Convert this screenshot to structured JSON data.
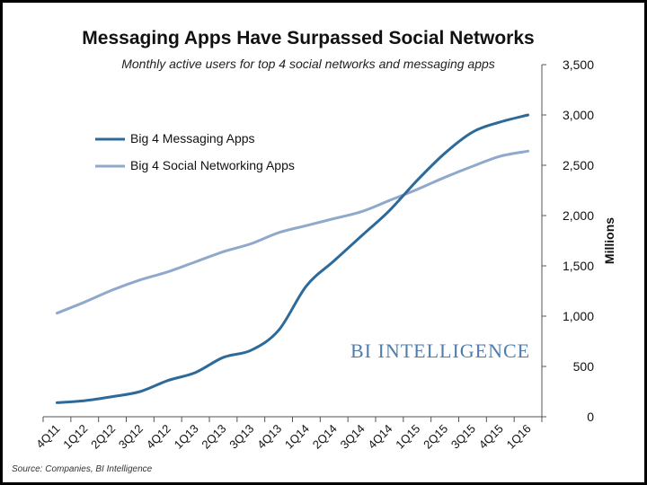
{
  "chart_data": {
    "type": "line",
    "title": "Messaging Apps Have Surpassed Social Networks",
    "subtitle": "Monthly active users for top 4 social networks and messaging apps",
    "ylabel": "Millions",
    "xlabel": "",
    "ylim": [
      0,
      3500
    ],
    "yticks": [
      0,
      500,
      1000,
      1500,
      2000,
      2500,
      3000,
      3500
    ],
    "ytick_labels": [
      "0",
      "500",
      "1,000",
      "1,500",
      "2,000",
      "2,500",
      "3,000",
      "3,500"
    ],
    "y_axis_position": "right",
    "grid": false,
    "legend_position": "upper-left",
    "categories": [
      "4Q11",
      "1Q12",
      "2Q12",
      "3Q12",
      "4Q12",
      "1Q13",
      "2Q13",
      "3Q13",
      "4Q13",
      "1Q14",
      "2Q14",
      "3Q14",
      "4Q14",
      "1Q15",
      "2Q15",
      "3Q15",
      "4Q15",
      "1Q16"
    ],
    "series": [
      {
        "name": "Big 4 Messaging Apps",
        "color": "#2d6a9a",
        "values": [
          140,
          160,
          200,
          250,
          360,
          440,
          590,
          660,
          860,
          1300,
          1550,
          1800,
          2050,
          2350,
          2620,
          2830,
          2930,
          3000
        ]
      },
      {
        "name": "Big 4 Social Networking Apps",
        "color": "#8fa9cc",
        "values": [
          1030,
          1140,
          1260,
          1360,
          1440,
          1540,
          1640,
          1720,
          1830,
          1900,
          1970,
          2040,
          2150,
          2260,
          2380,
          2490,
          2590,
          2640
        ]
      }
    ]
  },
  "watermark": "BI INTELLIGENCE",
  "source": "Source: Companies, BI Intelligence"
}
